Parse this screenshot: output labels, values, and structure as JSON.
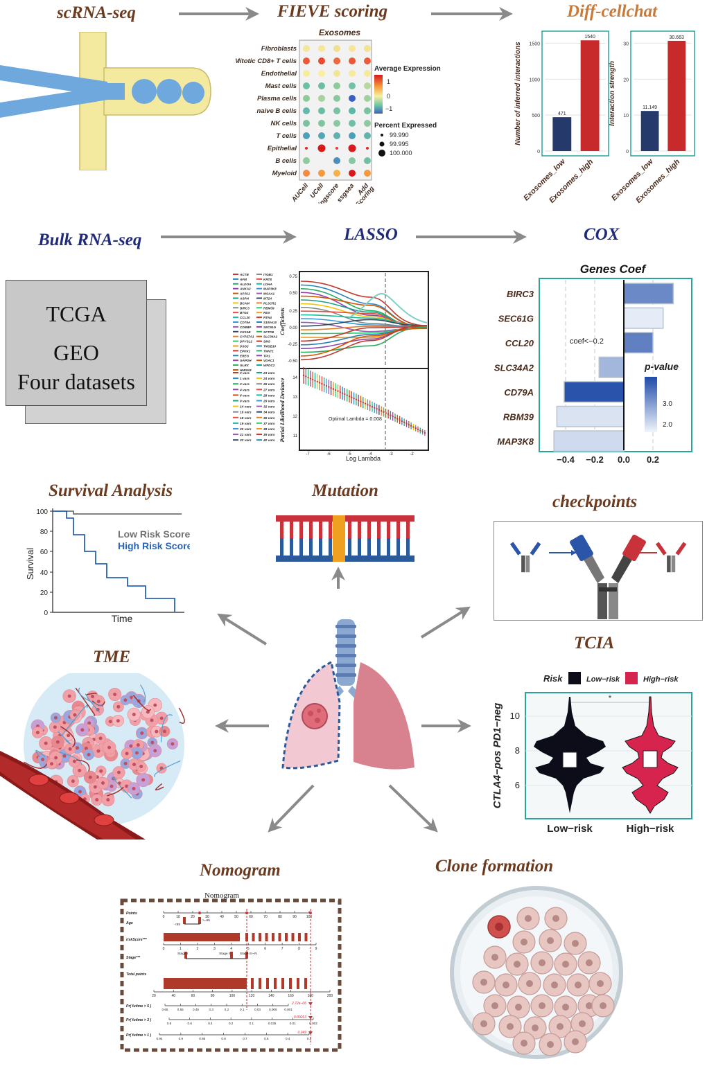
{
  "titles": {
    "scrna": "scRNA-seq",
    "fieve": "FIEVE scoring",
    "cellchat": "Diff-cellchat",
    "bulk": "Bulk RNA-seq",
    "lasso": "LASSO",
    "cox": "COX",
    "survival": "Survival Analysis",
    "mutation": "Mutation",
    "checkpoints": "checkpoints",
    "tme": "TME",
    "tcia": "TCIA",
    "nomogram": "Nomogram",
    "clone": "Clone formation"
  },
  "datasets": [
    "TCGA",
    "GEO",
    "Four datasets"
  ],
  "dotplot": {
    "title": "Exosomes",
    "rows": [
      "Fibroblasts",
      "Mitotic CD8+ T cells",
      "Endothelial",
      "Mast cells",
      "Plasma cells",
      "naive B cells",
      "NK cells",
      "T cells",
      "Epithelial",
      "B cells",
      "Myeloid"
    ],
    "cols": [
      "AUCell",
      "UCell",
      "singscore",
      "ssgsea",
      "Add Scoring"
    ],
    "avg_title": "Average Expression",
    "avg_ticks": [
      "1",
      "0",
      "−1"
    ],
    "pct_title": "Percent Expressed",
    "pct_values": [
      "99.990",
      "99.995",
      "100.000"
    ]
  },
  "cellchat": {
    "panels": [
      {
        "ylabel": "Number of inferred interactions",
        "ticks": [
          "0",
          "500",
          "1000",
          "1500"
        ],
        "ymax": 1600,
        "bars": [
          {
            "label": "Exosomes_low",
            "value": 471,
            "text": "471"
          },
          {
            "label": "Exosomes_high",
            "value": 1540,
            "text": "1540"
          }
        ]
      },
      {
        "ylabel": "Interaction strength",
        "ticks": [
          "0",
          "10",
          "20",
          "30"
        ],
        "ymax": 32,
        "bars": [
          {
            "label": "Exosomes_low",
            "value": 11.149,
            "text": "11.149"
          },
          {
            "label": "Exosomes_high",
            "value": 30.663,
            "text": "30.663"
          }
        ]
      }
    ],
    "colors": {
      "low": "#253a6b",
      "high": "#c8292b"
    }
  },
  "lasso": {
    "genes_left": [
      "ACTB",
      "AFM",
      "ALDOA",
      "ANXA2",
      "APJS1",
      "ASPH",
      "BCAM",
      "BIRC3",
      "BTG2",
      "CCL20",
      "CD79A",
      "CDBBP",
      "CKS1B",
      "CYP27A1",
      "DPYSL2",
      "DSG2",
      "EPHX1",
      "EREG",
      "GAPDH",
      "GLRX",
      "HMGN3"
    ],
    "genes_right": [
      "ITGB1",
      "KRT8",
      "LDHA",
      "MAP3K8",
      "MSAA1",
      "MT2A",
      "PLSCR1",
      "RBM39",
      "RDX",
      "RTN4",
      "S100A10",
      "SEC61G",
      "SFTPB",
      "SLC34A2",
      "SMS",
      "TMSB10",
      "TNNT1",
      "TPI1",
      "VDAC1",
      "WFDC2"
    ],
    "vars_left": [
      "0 vars",
      "1 vars",
      "3 vars",
      "4 vars",
      "6 vars",
      "9 vars",
      "14 vars",
      "15 vars",
      "18 vars",
      "19 vars",
      "20 vars",
      "21 vars",
      "22 vars"
    ],
    "vars_right": [
      "23 vars",
      "24 vars",
      "26 vars",
      "27 vars",
      "28 vars",
      "29 vars",
      "32 vars",
      "34 vars",
      "36 vars",
      "37 vars",
      "38 vars",
      "39 vars",
      "40 vars"
    ],
    "top_yticks": [
      "0.75",
      "0.50",
      "0.25",
      "0.00",
      "-0.25",
      "-0.50"
    ],
    "bottom_yticks": [
      "14",
      "13",
      "12",
      "11"
    ],
    "xticks": [
      "-7",
      "-6",
      "-5",
      "-4",
      "-3",
      "-2"
    ],
    "top_ylabel": "Coefficients",
    "bottom_ylabel": "Partial Likelihood Deviance",
    "xlabel": "Log Lambda",
    "annotation": "Optimal Lambda = 0.008"
  },
  "cox": {
    "title": "Genes Coef",
    "genes": [
      "BIRC3",
      "SEC61G",
      "CCL20",
      "SLC34A2",
      "CD79A",
      "RBM39",
      "MAP3K8"
    ],
    "coefs": [
      0.34,
      0.27,
      0.2,
      -0.17,
      -0.41,
      -0.46,
      -0.48
    ],
    "pvals": [
      2.8,
      1.7,
      2.9,
      2.3,
      3.4,
      1.8,
      1.9
    ],
    "xticks": [
      "−0.4",
      "−0.2",
      "0.0",
      "0.2"
    ],
    "annotation": "coef<−0.2",
    "legend_title": "p-value",
    "legend_ticks": [
      "3.0",
      "2.0"
    ]
  },
  "survival": {
    "yticks": [
      "100",
      "80",
      "60",
      "40",
      "20",
      "0"
    ],
    "ylabel": "Survival",
    "xlabel": "Time",
    "low_label": "Low Risk Score",
    "high_label": "High Risk Score",
    "low_color": "#707070",
    "high_color": "#2a64b5"
  },
  "tcia": {
    "legend_title": "Risk",
    "groups": [
      "Low−risk",
      "High−risk"
    ],
    "colors": {
      "low": "#0d0d1a",
      "high": "#d6244f"
    },
    "ylabel": "CTLA4−pos PD1−neg",
    "yticks": [
      "10",
      "8",
      "6"
    ],
    "sig": "*"
  },
  "nomogram": {
    "title": "Nomogram",
    "rows": [
      "Points",
      "Age",
      "riskScore***",
      "Stage***",
      "Total points",
      "Pr( futime > 5 )",
      "Pr( futime > 3 )",
      "Pr( futime > 1 )"
    ],
    "points_ticks": [
      "0",
      "10",
      "20",
      "30",
      "40",
      "50",
      "60",
      "70",
      "80",
      "90",
      "100"
    ],
    "age_labels": [
      "<65",
      ">=65"
    ],
    "risk_ticks": [
      "0",
      "1",
      "2",
      "3",
      "4",
      "5",
      "6",
      "7",
      "8",
      "9"
    ],
    "stage_labels": [
      "Stage I",
      "Stage II",
      "Stage III~IV"
    ],
    "total_ticks": [
      "20",
      "40",
      "60",
      "80",
      "100",
      "120",
      "140",
      "160",
      "180",
      "200"
    ],
    "pr5_ticks": [
      "0.65",
      "0.55",
      "0.45",
      "0.3",
      "0.2",
      "0.1",
      "0.03",
      "0.008",
      "0.001"
    ],
    "pr3_ticks": [
      "0.8",
      "0.6",
      "0.4",
      "0.2",
      "0.1",
      "0.035",
      "0.01",
      "0.002"
    ],
    "pr1_ticks": [
      "0.94",
      "0.9",
      "0.86",
      "0.8",
      "0.7",
      "0.6",
      "0.4",
      "0.2"
    ],
    "pr5_value": "2.72e−06",
    "pr3_value": "0.00263",
    "pr1_value": "0.249"
  }
}
